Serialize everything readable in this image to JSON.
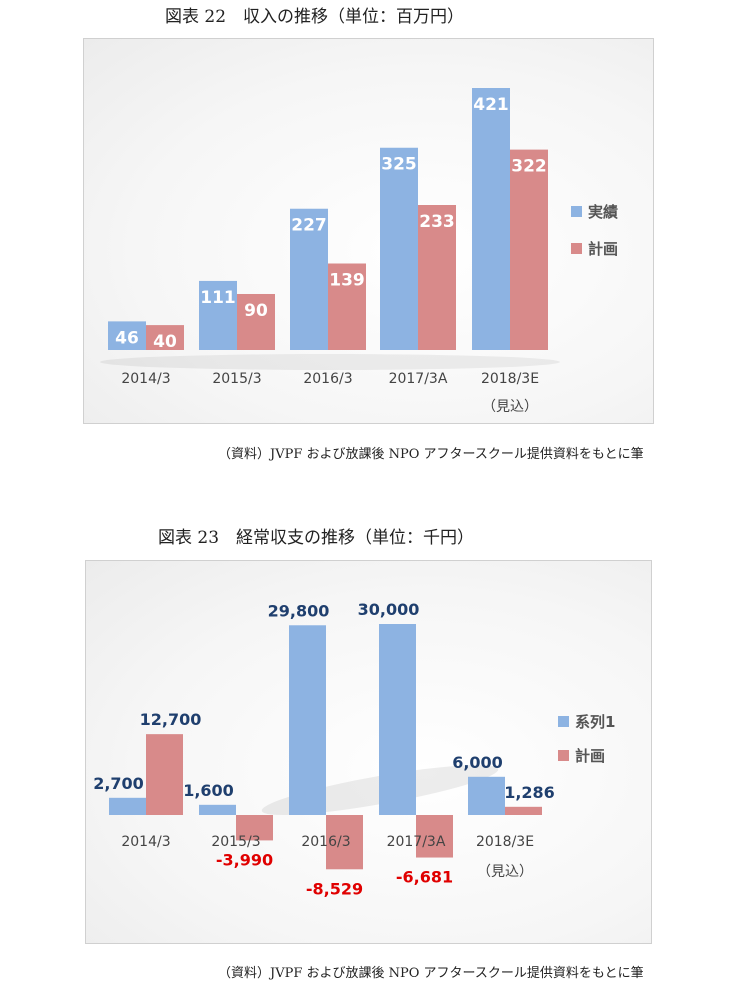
{
  "figure1": {
    "title": "図表 22　収入の推移（単位：百万円）",
    "source": "（資料）JVPF および放課後 NPO アフタースクール提供資料をもとに筆",
    "chart_data": {
      "type": "bar",
      "categories": [
        "2014/3",
        "2015/3",
        "2016/3",
        "2017/3A",
        "2018/3E"
      ],
      "category_sublabels": [
        "",
        "",
        "",
        "",
        "（見込）"
      ],
      "series": [
        {
          "name": "実績",
          "values": [
            46,
            111,
            227,
            325,
            421
          ],
          "color": "#8db3e2"
        },
        {
          "name": "計画",
          "values": [
            40,
            90,
            139,
            233,
            322
          ],
          "color": "#d88a8a"
        }
      ],
      "ylim": [
        0,
        450
      ],
      "grid": false,
      "legend": "right",
      "label_color": "#ffffff"
    }
  },
  "figure2": {
    "title": "図表 23　経常収支の推移（単位：千円）",
    "source": "（資料）JVPF および放課後 NPO アフタースクール提供資料をもとに筆",
    "chart_data": {
      "type": "bar",
      "categories": [
        "2014/3",
        "2015/3",
        "2016/3",
        "2017/3A",
        "2018/3E"
      ],
      "category_sublabels": [
        "",
        "",
        "",
        "",
        "（見込）"
      ],
      "series": [
        {
          "name": "系列1",
          "values": [
            2700,
            1600,
            29800,
            30000,
            6000
          ],
          "labels": [
            "2,700",
            "1,600",
            "29,800",
            "30,000",
            "6,000"
          ],
          "color": "#8db3e2"
        },
        {
          "name": "計画",
          "values": [
            12700,
            -3990,
            -8529,
            -6681,
            1286
          ],
          "labels": [
            "12,700",
            "-3,990",
            "-8,529",
            "-6,681",
            "1,286"
          ],
          "color": "#d88a8a"
        }
      ],
      "ylim": [
        -10000,
        32000
      ],
      "grid": false,
      "legend": "right",
      "positive_label_color": "#1f3f6e",
      "negative_label_color": "#e00000"
    }
  }
}
